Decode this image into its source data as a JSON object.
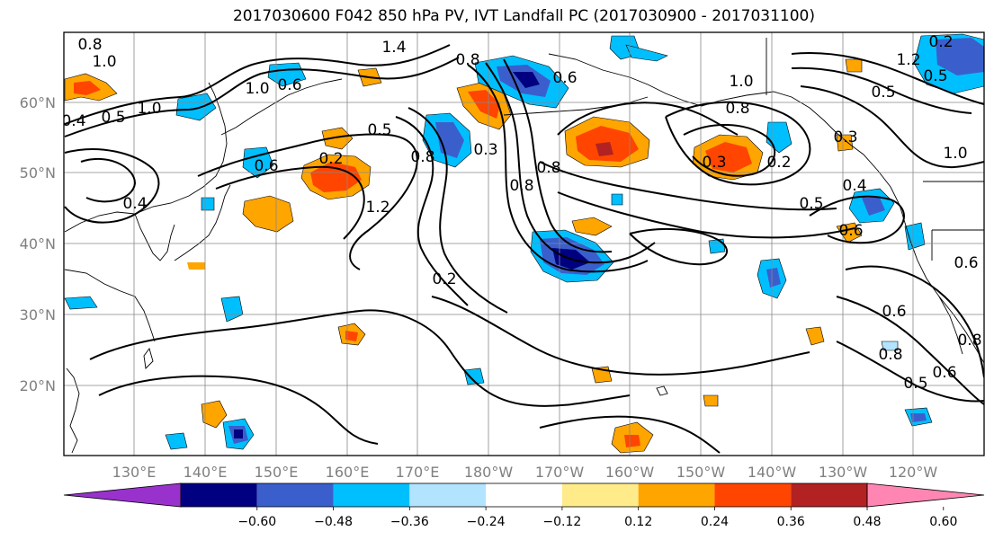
{
  "title": "2017030600 F042 850 hPa PV, IVT Landfall PC (2017030900 - 2017031100)",
  "lat_labels": [
    "60°N",
    "50°N",
    "40°N",
    "30°N",
    "20°N"
  ],
  "lon_labels": [
    "130°E",
    "140°E",
    "150°E",
    "160°E",
    "170°E",
    "180°W",
    "170°W",
    "160°W",
    "150°W",
    "140°W",
    "130°W",
    "120°W"
  ],
  "contour_labels": [
    "0.8",
    "1.0",
    "0.4",
    "0.5",
    "1.0",
    "0.6",
    "1.0",
    "1.4",
    "0.8",
    "0.5",
    "0.2",
    "0.4",
    "0.6",
    "0.8",
    "1.2",
    "0.3",
    "0.8",
    "0.6",
    "1.0",
    "0.8",
    "0.8",
    "0.3",
    "0.2",
    "0.4",
    "0.5",
    "0.6",
    "0.2",
    "0.6",
    "0.5",
    "0.3",
    "0.2",
    "1.2",
    "0.5",
    "1.0",
    "0.6",
    "0.8",
    "0.6",
    "0.5",
    "0.8"
  ],
  "colorbar": {
    "ticks": [
      "−0.60",
      "−0.48",
      "−0.36",
      "−0.24",
      "−0.12",
      "0.12",
      "0.24",
      "0.36",
      "0.48",
      "0.60"
    ],
    "colors": [
      "#9932CC",
      "#000080",
      "#3A5FCD",
      "#00BFFF",
      "#B2E3FF",
      "#FFFFFF",
      "#FFEB8A",
      "#FFA500",
      "#FF4500",
      "#B22222",
      "#FF86B2"
    ]
  }
}
